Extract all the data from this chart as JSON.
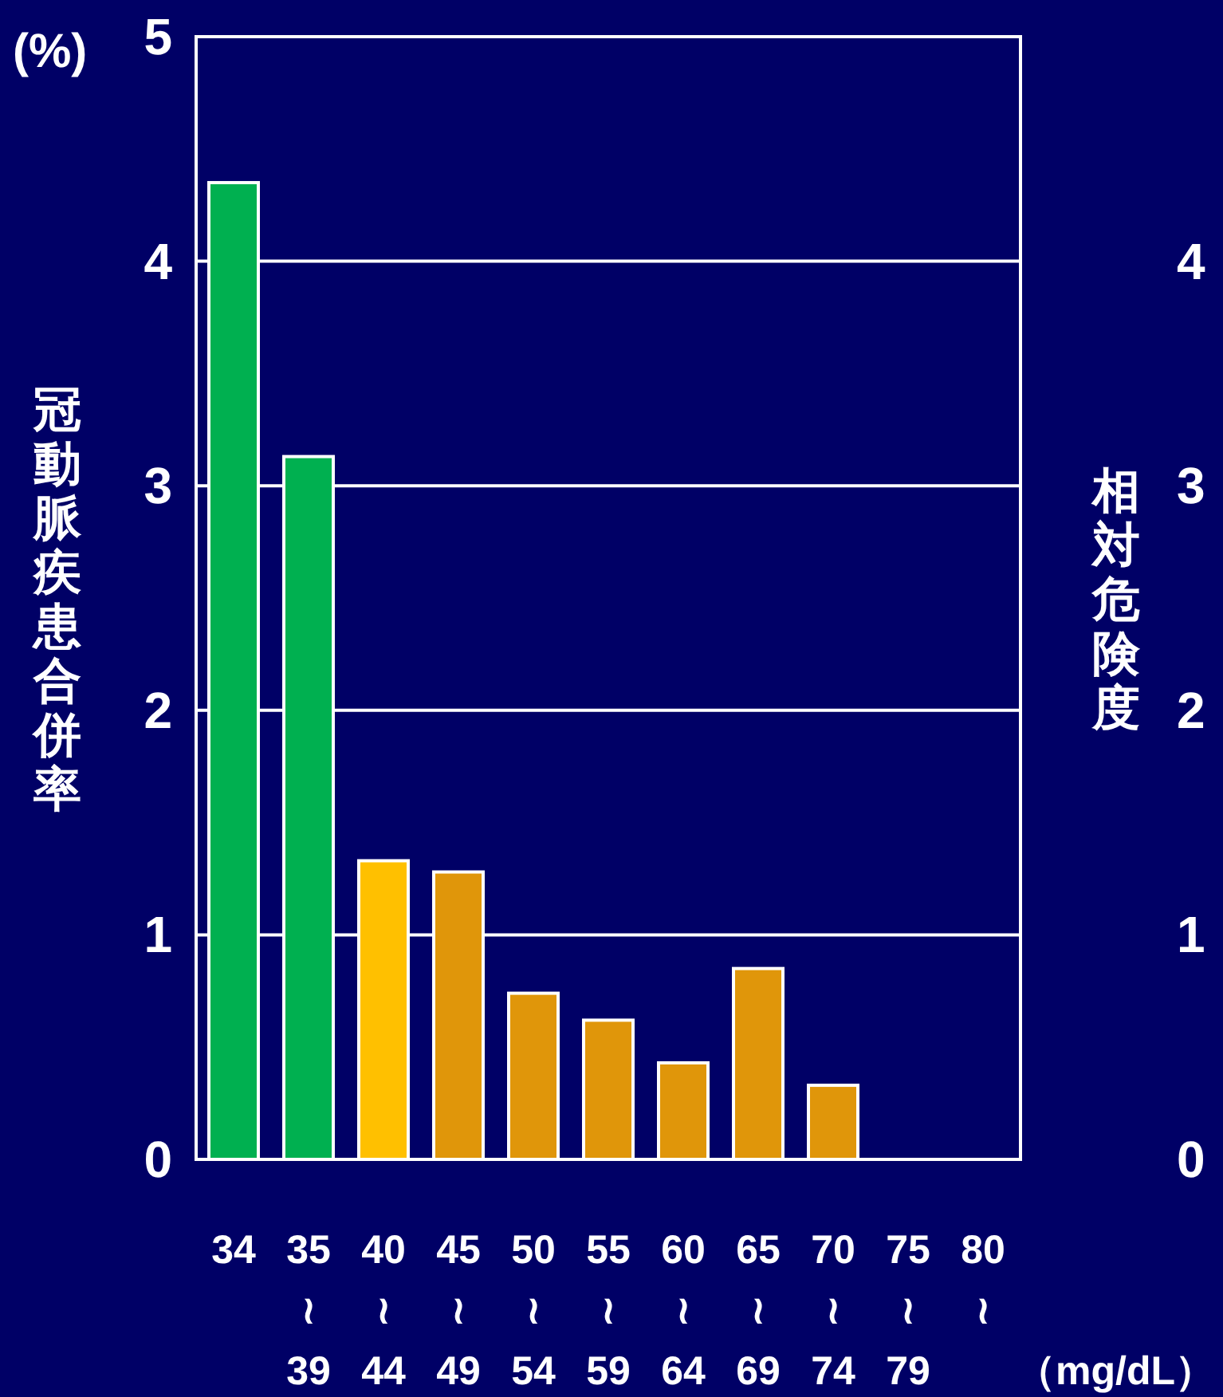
{
  "chart_data": {
    "type": "bar",
    "ylabel": "冠動脈疾患合併率",
    "y2label": "相対危険度",
    "xlabel": "（mg/dL）",
    "annotations": [
      "(%)"
    ],
    "categories": [
      "34",
      "35\n≀\n39",
      "40\n≀\n44",
      "45\n≀\n49",
      "50\n≀\n54",
      "55\n≀\n59",
      "60\n≀\n64",
      "65\n≀\n69",
      "70\n≀\n74",
      "75\n≀\n79",
      "80\n≀"
    ],
    "values": [
      4.35,
      3.13,
      1.33,
      1.28,
      0.74,
      0.62,
      0.43,
      0.85,
      0.33,
      null,
      null
    ],
    "colors": [
      "#00b050",
      "#00b050",
      "#ffc000",
      "#e0960a",
      "#e0960a",
      "#e0960a",
      "#e0960a",
      "#e0960a",
      "#e0960a",
      null,
      null
    ],
    "ylim": [
      0,
      5
    ],
    "yticks": [
      0,
      1,
      2,
      3,
      4,
      5
    ],
    "y2lim": [
      0,
      5
    ],
    "y2ticks": [
      0,
      1,
      2,
      3,
      4
    ],
    "grid": "y"
  }
}
